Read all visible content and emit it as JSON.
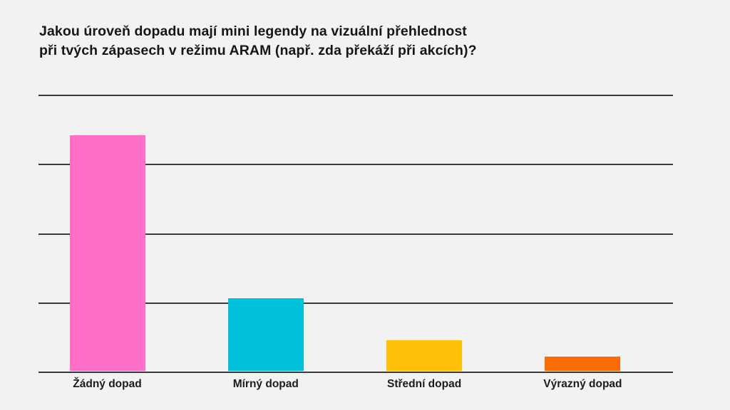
{
  "page": {
    "background_color": "#f2f2f0",
    "gridline_color": "#3a3a3a",
    "title_color": "#161616"
  },
  "chart_data": {
    "type": "bar",
    "title": "Jakou úroveň dopadu mají mini legendy na vizuální přehlednost\npři tvých zápasech v režimu ARAM (např. zda překáží při akcích)?",
    "categories": [
      "Žádný dopad",
      "Mírný dopad",
      "Střední dopad",
      "Výrazný dopad"
    ],
    "values": [
      3.4,
      1.05,
      0.44,
      0.21
    ],
    "value_scale_note": "y-axis has no tick labels; values measured in gridline intervals from baseline",
    "estimated_percent_of_responses": [
      68,
      21,
      9,
      4
    ],
    "bar_colors": [
      "#ff6ec7",
      "#00c1d9",
      "#ffc107",
      "#ff6b00"
    ],
    "ylim": [
      0,
      4
    ],
    "gridline_count": 5,
    "grid": true,
    "xlabel": "",
    "ylabel": "",
    "legend_position": "none"
  }
}
